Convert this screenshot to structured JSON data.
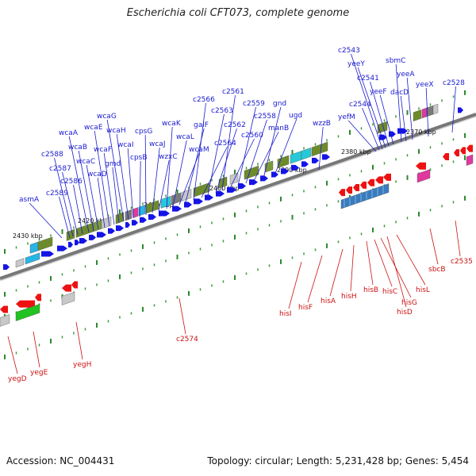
{
  "title": "Escherichia coli CFT073, complete genome",
  "footer": {
    "accession": "Accession: NC_004431",
    "summary": "Topology: circular; Length: 5,231,428 bp; Genes: 5,454"
  },
  "colors": {
    "forward_gene_label": "#1a1ad0",
    "reverse_gene_label": "#cc1111",
    "forward_arrow": "#1414e6",
    "reverse_arrow": "#ee1111",
    "backbone": "#777777",
    "tick_major": "#2a8a2a"
  },
  "scale_labels": [
    "2430 kbp",
    "2420 kbp",
    "2410 kbp",
    "2400 kbp",
    "2390 kbp",
    "2380 kbp",
    "2370 kbp"
  ],
  "genes_top": [
    "asmA",
    "c2589",
    "c2588",
    "c2587",
    "c2586",
    "wcaA",
    "wcaB",
    "wcaC",
    "wcaD",
    "wcaE",
    "wcaF",
    "gmd",
    "wcaG",
    "wcaH",
    "wcaI",
    "cpsB",
    "cpsG",
    "wcaJ",
    "wzxC",
    "wcaK",
    "wcaL",
    "wcaM",
    "galF",
    "c2566",
    "c2564",
    "c2563",
    "c2562",
    "c2561",
    "c2560",
    "c2559",
    "c2558",
    "manB",
    "gnd",
    "ugd",
    "wzzB",
    "yefM",
    "c2544",
    "c2543",
    "yeeY",
    "c2541",
    "yeeF",
    "sbmC",
    "dacD",
    "yeeA",
    "yeeX",
    "c2528"
  ],
  "genes_bottom": [
    "yegD",
    "yegE",
    "yegH",
    "c2574",
    "hisI",
    "hisF",
    "hisA",
    "hisH",
    "hisB",
    "hisC",
    "hisG",
    "hisD",
    "hisL",
    "sbcB",
    "c2535"
  ]
}
